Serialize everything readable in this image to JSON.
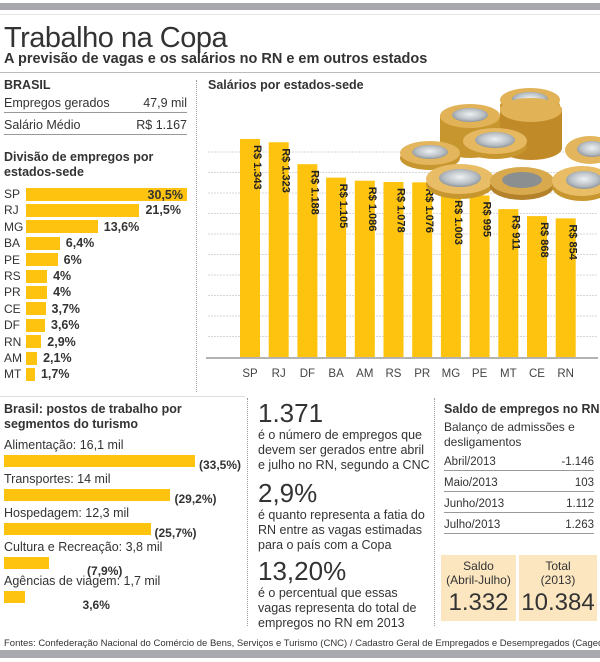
{
  "header": {
    "title": "Trabalho na Copa",
    "subtitle": "A previsão de vagas e os salários no RN e em outros estados"
  },
  "brasil": {
    "label": "BRASIL",
    "rows": [
      {
        "label": "Empregos gerados",
        "value": "47,9 mil"
      },
      {
        "label": "Salário Médio",
        "value": "R$ 1.167"
      }
    ]
  },
  "divisao": {
    "title_line1": "Divisão de empregos por",
    "title_line2": "estados-sede"
  },
  "segmentos": {
    "title_line1": "Brasil: postos de trabalho por",
    "title_line2": "segmentos do turismo"
  },
  "salarios": {
    "title": "Salários por estados-sede"
  },
  "highlights": [
    {
      "number": "1.371",
      "desc": "é o número de empregos que devem ser gerados entre abril e julho no RN, segundo a CNC"
    },
    {
      "number": "2,9%",
      "desc": "é quanto representa a fatia do RN entre as vagas estimadas para o país com a Copa"
    },
    {
      "number": "13,20%",
      "desc": "é o percentual que essas vagas representa do total de empregos no RN em 2013"
    }
  ],
  "saldo": {
    "title": "Saldo de empregos no RN",
    "subtitle": "Balanço de admissões e desligamentos",
    "rows": [
      {
        "label": "Abril/2013",
        "value": "-1.146"
      },
      {
        "label": "Maio/2013",
        "value": "103"
      },
      {
        "label": "Junho/2013",
        "value": "1.112"
      },
      {
        "label": "Julho/2013",
        "value": "1.263"
      }
    ],
    "boxes": [
      {
        "label1": "Saldo",
        "label2": "(Abril-Julho)",
        "value": "1.332"
      },
      {
        "label1": "Total",
        "label2": "(2013)",
        "value": "10.384"
      }
    ]
  },
  "footer": "Fontes: Confederação Nacional do Comércio de Bens, Serviços e Turismo (CNC) / Cadastro Geral de Empregados e Desempregados (Caged)",
  "colors": {
    "bar": "#fec30f",
    "band": "#a7a9ac",
    "box": "#fbe6c0"
  },
  "chart_data": [
    {
      "type": "bar",
      "orientation": "horizontal",
      "title": "Divisão de empregos por estados-sede",
      "categories": [
        "SP",
        "RJ",
        "MG",
        "BA",
        "PE",
        "RS",
        "PR",
        "CE",
        "DF",
        "RN",
        "AM",
        "MT"
      ],
      "values": [
        30.5,
        21.5,
        13.6,
        6.4,
        6,
        4,
        4,
        3.7,
        3.6,
        2.9,
        2.1,
        1.7
      ],
      "labels": [
        "30,5%",
        "21,5%",
        "13,6%",
        "6,4%",
        "6%",
        "4%",
        "4%",
        "3,7%",
        "3,6%",
        "2,9%",
        "2,1%",
        "1,7%"
      ],
      "unit": "%"
    },
    {
      "type": "bar",
      "orientation": "vertical",
      "title": "Salários por estados-sede",
      "categories": [
        "SP",
        "RJ",
        "DF",
        "BA",
        "AM",
        "RS",
        "PR",
        "MG",
        "PE",
        "MT",
        "CE",
        "RN"
      ],
      "values": [
        1343,
        1323,
        1188,
        1105,
        1086,
        1078,
        1076,
        1003,
        995,
        911,
        868,
        854
      ],
      "labels": [
        "R$ 1.343",
        "R$ 1.323",
        "R$ 1.188",
        "R$ 1.105",
        "R$ 1.086",
        "R$ 1.078",
        "R$ 1.076",
        "R$ 1.003",
        "R$ 995",
        "R$ 911",
        "R$ 868",
        "R$ 854"
      ],
      "ylabel": "R$",
      "ylim": [
        0,
        1450
      ],
      "grid": true
    },
    {
      "type": "bar",
      "orientation": "horizontal",
      "title": "Brasil: postos de trabalho por segmentos do turismo",
      "categories": [
        "Alimentação: 16,1 mil",
        "Transportes: 14 mil",
        "Hospedagem: 12,3 mil",
        "Cultura e Recreação: 3,8 mil",
        "Agências de viagem: 1,7 mil"
      ],
      "values": [
        33.5,
        29.2,
        25.7,
        7.9,
        3.6
      ],
      "labels": [
        "(33,5%)",
        "(29,2%)",
        "(25,7%)",
        "(7,9%)",
        "3,6%"
      ],
      "unit": "%"
    }
  ]
}
